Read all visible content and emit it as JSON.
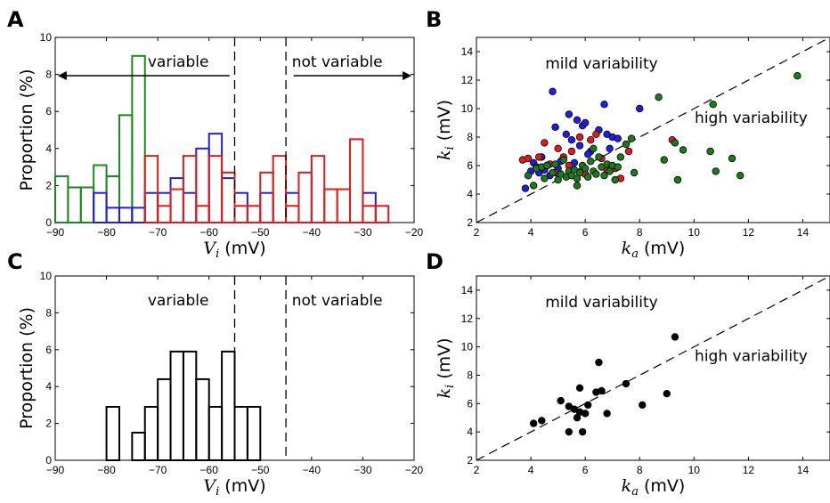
{
  "chart_data": [
    {
      "panel": "A",
      "type": "bar",
      "xlabel": "V_i (mV)",
      "ylabel": "Proportion (%)",
      "xlim": [
        -90,
        -20
      ],
      "ylim": [
        0,
        10
      ],
      "xticks": [
        -90,
        -80,
        -70,
        -60,
        -50,
        -40,
        -30,
        -20
      ],
      "yticks": [
        0,
        2,
        4,
        6,
        8,
        10
      ],
      "dashed_lines_x": [
        -55,
        -45
      ],
      "annotations": [
        "variable",
        "not variable"
      ],
      "arrows": [
        "left",
        "right"
      ],
      "series": [
        {
          "color": "#1b8a1b",
          "bin_edges": [
            -90,
            -87.5,
            -85,
            -82.5,
            -80,
            -77.5,
            -75,
            -72.5
          ],
          "values": [
            2.5,
            1.9,
            1.9,
            3.1,
            2.5,
            5.8,
            9.0
          ]
        },
        {
          "color": "#1f1fdd",
          "bin_edges": [
            -82.5,
            -80,
            -77.5,
            -75,
            -72.5,
            -70,
            -67.5,
            -65,
            -62.5,
            -60,
            -57.5,
            -55,
            -52.5,
            -50,
            -47.5,
            -45,
            -42.5,
            -40,
            -37.5,
            -35,
            -32.5,
            -30,
            -27.5
          ],
          "values": [
            1.6,
            0.8,
            0.8,
            0.8,
            1.6,
            1.6,
            2.4,
            1.6,
            4.0,
            4.8,
            2.4,
            1.6,
            0,
            1.6,
            0,
            1.6,
            0,
            0,
            0,
            0,
            0,
            1.6
          ]
        },
        {
          "color": "#e01b1b",
          "bin_edges": [
            -72.5,
            -70,
            -67.5,
            -65,
            -62.5,
            -60,
            -57.5,
            -55,
            -52.5,
            -50,
            -47.5,
            -45,
            -42.5,
            -40,
            -37.5,
            -35,
            -32.5,
            -30,
            -27.5,
            -25
          ],
          "values": [
            3.6,
            0.9,
            1.8,
            3.6,
            0.9,
            3.6,
            2.7,
            0.9,
            0.9,
            2.7,
            3.6,
            0.9,
            2.7,
            3.6,
            1.8,
            1.8,
            4.5,
            0.9,
            0.9
          ]
        }
      ]
    },
    {
      "panel": "B",
      "type": "scatter",
      "xlabel": "k_a (mV)",
      "ylabel": "k_i (mV)",
      "xlim": [
        2,
        15
      ],
      "ylim": [
        2,
        15
      ],
      "xticks": [
        2,
        4,
        6,
        8,
        10,
        12,
        14
      ],
      "yticks": [
        2,
        4,
        6,
        8,
        10,
        12,
        14
      ],
      "diagonal": "y = x",
      "annotations": [
        "mild variability",
        "high variability"
      ],
      "series": [
        {
          "color": "#1f1fdd",
          "points": [
            [
              3.8,
              4.4
            ],
            [
              4.0,
              5.6
            ],
            [
              4.1,
              6.2
            ],
            [
              4.2,
              5.9
            ],
            [
              4.3,
              5.5
            ],
            [
              4.4,
              6.6
            ],
            [
              4.6,
              6.0
            ],
            [
              4.7,
              5.3
            ],
            [
              4.8,
              11.2
            ],
            [
              4.9,
              8.7
            ],
            [
              5.0,
              5.8
            ],
            [
              5.1,
              6.3
            ],
            [
              5.3,
              8.2
            ],
            [
              5.4,
              9.6
            ],
            [
              5.5,
              7.8
            ],
            [
              5.6,
              6.2
            ],
            [
              5.7,
              9.2
            ],
            [
              5.8,
              7.4
            ],
            [
              5.9,
              8.8
            ],
            [
              6.0,
              9.0
            ],
            [
              6.2,
              7.0
            ],
            [
              6.5,
              8.5
            ],
            [
              6.7,
              10.3
            ],
            [
              6.8,
              8.2
            ],
            [
              6.9,
              7.2
            ],
            [
              7.0,
              8.0
            ],
            [
              7.2,
              7.9
            ],
            [
              8.0,
              10.0
            ],
            [
              4.5,
              5.7
            ],
            [
              6.1,
              6.8
            ]
          ]
        },
        {
          "color": "#e01b1b",
          "points": [
            [
              3.7,
              6.4
            ],
            [
              3.9,
              6.5
            ],
            [
              4.3,
              6.6
            ],
            [
              4.5,
              7.6
            ],
            [
              4.7,
              6.1
            ],
            [
              5.0,
              7.2
            ],
            [
              5.2,
              6.6
            ],
            [
              5.5,
              7.0
            ],
            [
              5.8,
              8.0
            ],
            [
              6.0,
              5.4
            ],
            [
              6.2,
              7.8
            ],
            [
              6.4,
              8.2
            ],
            [
              6.8,
              5.7
            ],
            [
              7.1,
              5.8
            ],
            [
              7.3,
              5.1
            ],
            [
              7.6,
              7.0
            ],
            [
              9.2,
              7.8
            ],
            [
              5.4,
              6.0
            ],
            [
              6.6,
              6.5
            ],
            [
              4.9,
              5.5
            ]
          ]
        },
        {
          "color": "#1b7a1b",
          "points": [
            [
              3.9,
              5.3
            ],
            [
              4.1,
              4.6
            ],
            [
              4.2,
              5.8
            ],
            [
              4.4,
              5.9
            ],
            [
              4.6,
              6.0
            ],
            [
              4.8,
              5.5
            ],
            [
              4.9,
              6.1
            ],
            [
              5.0,
              5.0
            ],
            [
              5.1,
              5.4
            ],
            [
              5.3,
              5.2
            ],
            [
              5.4,
              5.6
            ],
            [
              5.5,
              5.3
            ],
            [
              5.6,
              5.7
            ],
            [
              5.7,
              5.1
            ],
            [
              5.8,
              5.5
            ],
            [
              5.9,
              6.0
            ],
            [
              6.0,
              5.8
            ],
            [
              6.1,
              5.2
            ],
            [
              6.2,
              6.3
            ],
            [
              6.3,
              5.6
            ],
            [
              6.4,
              5.4
            ],
            [
              6.5,
              6.6
            ],
            [
              6.6,
              5.9
            ],
            [
              6.7,
              5.3
            ],
            [
              6.8,
              6.1
            ],
            [
              6.9,
              5.6
            ],
            [
              7.0,
              6.0
            ],
            [
              7.1,
              5.0
            ],
            [
              7.2,
              5.9
            ],
            [
              7.3,
              6.6
            ],
            [
              7.5,
              7.5
            ],
            [
              7.7,
              7.9
            ],
            [
              7.8,
              5.5
            ],
            [
              8.7,
              10.8
            ],
            [
              8.9,
              6.4
            ],
            [
              9.3,
              7.6
            ],
            [
              9.4,
              5.0
            ],
            [
              9.6,
              7.1
            ],
            [
              10.6,
              7.0
            ],
            [
              10.8,
              5.6
            ],
            [
              11.4,
              6.5
            ],
            [
              11.7,
              5.3
            ],
            [
              13.8,
              12.3
            ],
            [
              10.7,
              10.3
            ],
            [
              4.5,
              5.1
            ],
            [
              5.2,
              6.4
            ],
            [
              6.3,
              7.2
            ],
            [
              5.7,
              4.6
            ]
          ]
        }
      ]
    },
    {
      "panel": "C",
      "type": "bar",
      "xlabel": "V_i (mV)",
      "ylabel": "Proportion (%)",
      "xlim": [
        -90,
        -20
      ],
      "ylim": [
        0,
        10
      ],
      "xticks": [
        -90,
        -80,
        -70,
        -60,
        -50,
        -40,
        -30,
        -20
      ],
      "yticks": [
        0,
        2,
        4,
        6,
        8,
        10
      ],
      "dashed_lines_x": [
        -55,
        -45
      ],
      "annotations": [
        "variable",
        "not variable"
      ],
      "series": [
        {
          "color": "#000000",
          "bin_edges": [
            -80,
            -77.5,
            -75,
            -72.5,
            -70,
            -67.5,
            -65,
            -62.5,
            -60,
            -57.5,
            -55,
            -52.5,
            -50
          ],
          "values": [
            2.9,
            0,
            1.5,
            2.9,
            4.4,
            5.9,
            5.9,
            4.4,
            2.9,
            5.9,
            2.9,
            2.9
          ]
        }
      ]
    },
    {
      "panel": "D",
      "type": "scatter",
      "xlabel": "k_a (mV)",
      "ylabel": "k_i (mV)",
      "xlim": [
        2,
        15
      ],
      "ylim": [
        2,
        15
      ],
      "xticks": [
        2,
        4,
        6,
        8,
        10,
        12,
        14
      ],
      "yticks": [
        2,
        4,
        6,
        8,
        10,
        12,
        14
      ],
      "diagonal": "y = x",
      "annotations": [
        "mild variability",
        "high variability"
      ],
      "series": [
        {
          "color": "#000000",
          "points": [
            [
              4.1,
              4.6
            ],
            [
              4.4,
              4.8
            ],
            [
              5.1,
              6.2
            ],
            [
              5.4,
              4.0
            ],
            [
              5.4,
              5.8
            ],
            [
              5.6,
              5.6
            ],
            [
              5.7,
              5.0
            ],
            [
              5.8,
              7.1
            ],
            [
              5.8,
              5.4
            ],
            [
              5.9,
              4.0
            ],
            [
              6.0,
              5.3
            ],
            [
              6.1,
              5.9
            ],
            [
              6.4,
              6.8
            ],
            [
              6.5,
              8.9
            ],
            [
              6.6,
              6.9
            ],
            [
              6.8,
              5.3
            ],
            [
              7.5,
              7.4
            ],
            [
              8.1,
              5.9
            ],
            [
              9.0,
              6.7
            ],
            [
              9.3,
              10.7
            ]
          ]
        }
      ]
    }
  ]
}
